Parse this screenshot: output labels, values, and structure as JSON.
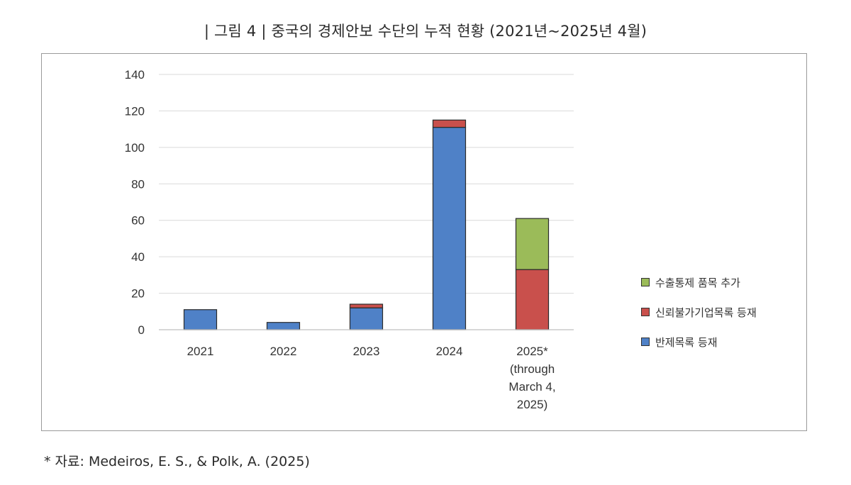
{
  "figure": {
    "title": "| 그림 4 |  중국의 경제안보 수단의 누적 현황 (2021년~2025년 4월)",
    "source": "* 자료: Medeiros, E. S., & Polk, A. (2025)"
  },
  "chart_data": {
    "type": "bar",
    "stacked": true,
    "categories": [
      "2021",
      "2022",
      "2023",
      "2024",
      "2025*\n(through\nMarch 4,\n2025)"
    ],
    "series": [
      {
        "name": "반제목록 등재",
        "color": "#4f81c7",
        "values": [
          11,
          4,
          12,
          111,
          0
        ]
      },
      {
        "name": "신뢰불가기업목록 등재",
        "color": "#c9504c",
        "values": [
          0,
          0,
          2,
          4,
          33
        ]
      },
      {
        "name": "수출통제 품목 추가",
        "color": "#9bbb59",
        "values": [
          0,
          0,
          0,
          0,
          28
        ]
      }
    ],
    "yticks": [
      "0",
      "20",
      "40",
      "60",
      "80",
      "100",
      "120",
      "140"
    ],
    "ylim": [
      0,
      140
    ],
    "grid": true,
    "legend_position": "right",
    "legend_order": [
      "수출통제 품목 추가",
      "신뢰불가기업목록 등재",
      "반제목록 등재"
    ]
  }
}
